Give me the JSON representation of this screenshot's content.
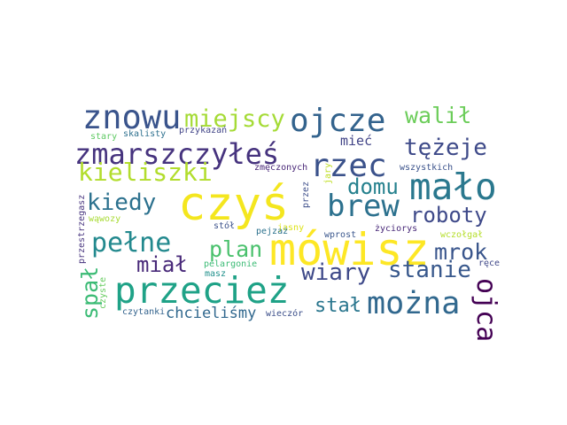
{
  "words": [
    {
      "text": "czyś",
      "color": "#f4e61e"
    },
    {
      "text": "mówisz",
      "color": "#fde725"
    },
    {
      "text": "przecież",
      "color": "#1fa287"
    },
    {
      "text": "mało",
      "color": "#2a788e"
    },
    {
      "text": "zmarszczyłeś",
      "color": "#46337e"
    },
    {
      "text": "ojcze",
      "color": "#33638d"
    },
    {
      "text": "znowu",
      "color": "#3a548c"
    },
    {
      "text": "można",
      "color": "#31688e"
    },
    {
      "text": "brew",
      "color": "#2c718e"
    },
    {
      "text": "kieliszki",
      "color": "#b2dd2d"
    },
    {
      "text": "pełne",
      "color": "#23898e"
    },
    {
      "text": "rzec",
      "color": "#3b528b"
    },
    {
      "text": "miejscy",
      "color": "#a5db36"
    },
    {
      "text": "wiary",
      "color": "#3e4989"
    },
    {
      "text": "kiedy",
      "color": "#2c718e"
    },
    {
      "text": "stanie",
      "color": "#38588c"
    },
    {
      "text": "roboty",
      "color": "#3e4989"
    },
    {
      "text": "tężeje",
      "color": "#3e4a89"
    },
    {
      "text": "ojca",
      "color": "#440154"
    },
    {
      "text": "walił",
      "color": "#6ccd5a"
    },
    {
      "text": "domu",
      "color": "#26818e"
    },
    {
      "text": "mrok",
      "color": "#39558c"
    },
    {
      "text": "plan",
      "color": "#4ac16d"
    },
    {
      "text": "stał",
      "color": "#2a768e"
    },
    {
      "text": "miał",
      "color": "#482979"
    },
    {
      "text": "spał",
      "color": "#3bbb75"
    },
    {
      "text": "chcieliśmy",
      "color": "#31688e"
    },
    {
      "text": "mieć",
      "color": "#414487"
    },
    {
      "text": "czytanki",
      "color": "#33638d"
    },
    {
      "text": "wieczór",
      "color": "#3c4f8a"
    },
    {
      "text": "przestrzegasz",
      "color": "#46337e"
    },
    {
      "text": "zmęczonych",
      "color": "#482677"
    },
    {
      "text": "wszystkich",
      "color": "#3b528b"
    },
    {
      "text": "przykazań",
      "color": "#414487"
    },
    {
      "text": "skalisty",
      "color": "#2d708e"
    },
    {
      "text": "stary",
      "color": "#5ec962"
    },
    {
      "text": "pelargonie",
      "color": "#3bbb75"
    },
    {
      "text": "jasny",
      "color": "#dde318"
    },
    {
      "text": "wprost",
      "color": "#39568c"
    },
    {
      "text": "życiorys",
      "color": "#482878"
    },
    {
      "text": "wczołgał",
      "color": "#b5de2b"
    },
    {
      "text": "ręce",
      "color": "#3f4788"
    },
    {
      "text": "stół",
      "color": "#3b518b"
    },
    {
      "text": "pejzaż",
      "color": "#2c728e"
    },
    {
      "text": "przez",
      "color": "#3d4e8a"
    },
    {
      "text": "jary",
      "color": "#c0df25"
    },
    {
      "text": "wąwozy",
      "color": "#a8db34"
    },
    {
      "text": "czyste",
      "color": "#65cb5e"
    },
    {
      "text": "masz",
      "color": "#21918c"
    }
  ]
}
